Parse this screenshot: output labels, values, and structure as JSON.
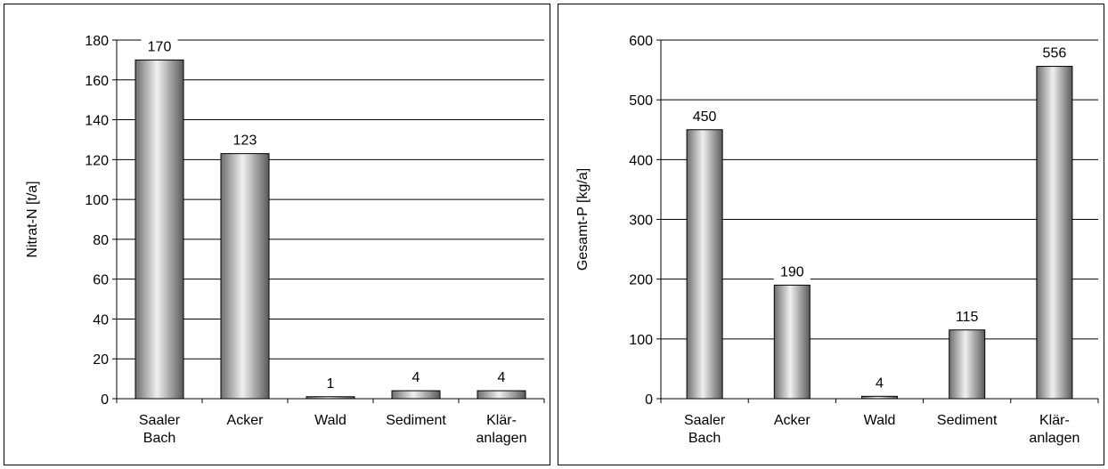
{
  "chart_data": [
    {
      "type": "bar",
      "title": "",
      "xlabel": "",
      "ylabel": "Nitrat-N [t/a]",
      "categories": [
        [
          "Saaler",
          "Bach"
        ],
        [
          "Acker"
        ],
        [
          "Wald"
        ],
        [
          "Sediment"
        ],
        [
          "Klär-",
          "anlagen"
        ]
      ],
      "values": [
        170,
        123,
        1,
        4,
        4
      ],
      "ylim": [
        0,
        180
      ],
      "yticks": [
        0,
        20,
        40,
        60,
        80,
        100,
        120,
        140,
        160,
        180
      ],
      "grid": true,
      "legend": "none"
    },
    {
      "type": "bar",
      "title": "",
      "xlabel": "",
      "ylabel": "Gesamt-P [kg/a]",
      "categories": [
        [
          "Saaler",
          "Bach"
        ],
        [
          "Acker"
        ],
        [
          "Wald"
        ],
        [
          "Sediment"
        ],
        [
          "Klär-",
          "anlagen"
        ]
      ],
      "values": [
        450,
        190,
        4,
        115,
        556
      ],
      "ylim": [
        0,
        600
      ],
      "yticks": [
        0,
        100,
        200,
        300,
        400,
        500,
        600
      ],
      "grid": true,
      "legend": "none"
    }
  ],
  "colors": {
    "bar_dark": "#7a7a7a",
    "bar_light": "#f0f0f0",
    "grid": "#000000"
  }
}
